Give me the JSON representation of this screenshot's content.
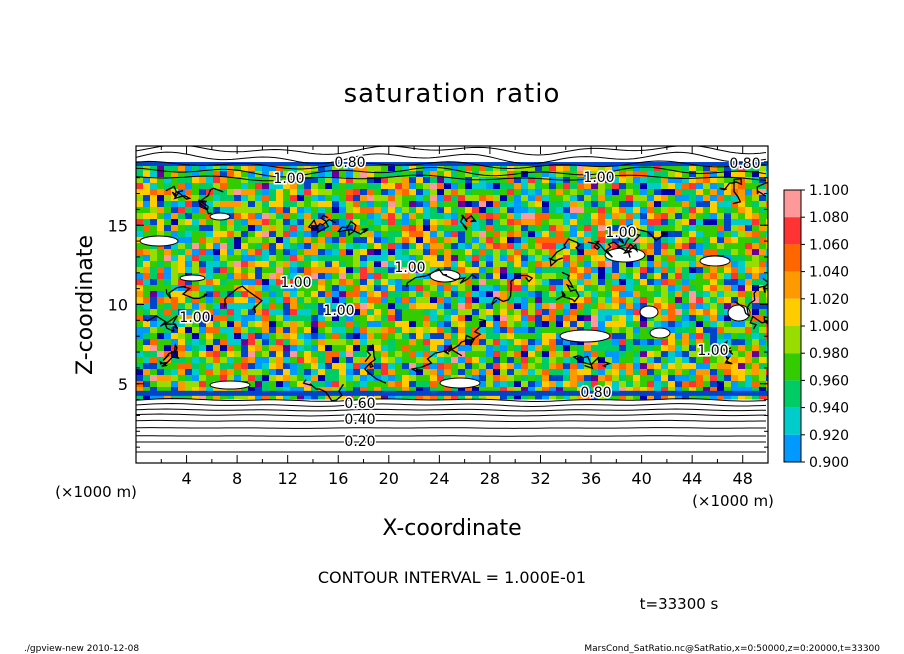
{
  "chart_data": {
    "type": "heatmap",
    "title": "saturation ratio",
    "xlabel": "X-coordinate",
    "ylabel": "Z-coordinate",
    "x_unit": "(×1000 m)",
    "y_unit": "(×1000 m)",
    "xlim": [
      0,
      50
    ],
    "ylim": [
      0,
      20
    ],
    "x_ticks": [
      "4",
      "8",
      "12",
      "16",
      "20",
      "24",
      "28",
      "32",
      "36",
      "40",
      "44",
      "48"
    ],
    "y_ticks": [
      "5",
      "10",
      "15"
    ],
    "colorbar": {
      "labels": [
        "1.100",
        "1.080",
        "1.060",
        "1.040",
        "1.020",
        "1.000",
        "0.980",
        "0.960",
        "0.940",
        "0.920",
        "0.900"
      ],
      "colors": [
        "#ff9999",
        "#ff3333",
        "#ff6600",
        "#ff9900",
        "#ffcc00",
        "#99dd00",
        "#33cc00",
        "#00cc66",
        "#00cccc",
        "#0099ff",
        "#0044cc",
        "#0000aa",
        "#660099"
      ],
      "min": 0.9,
      "max": 1.1
    },
    "contour_labels": [
      "0.80",
      "1.00",
      "0.80",
      "1.00",
      "1.00",
      "1.00",
      "1.00",
      "1.00",
      "1.00",
      "1.00",
      "0.80",
      "0.60",
      "0.40",
      "0.20"
    ],
    "contour_interval_text": "CONTOUR INTERVAL = 1.000E-01",
    "time_text": "t=33300 s"
  },
  "footer": {
    "left": "./gpview-new   2010-12-08",
    "right": "MarsCond_SatRatio.nc@SatRatio,x=0:50000,z=0:20000,t=33300"
  }
}
